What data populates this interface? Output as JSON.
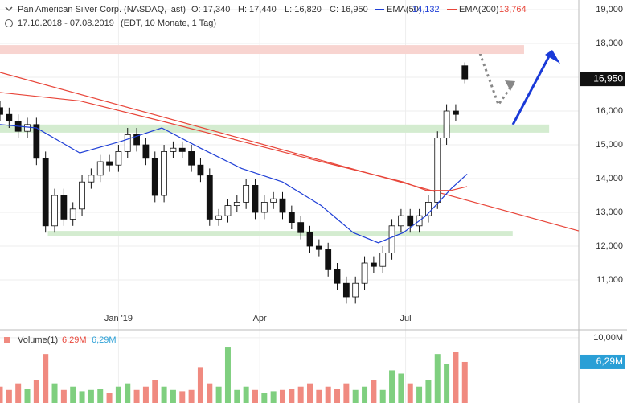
{
  "chart_data": {
    "type": "candlestick",
    "title": "Pan American Silver Corp. (NASDAQ, last)",
    "ohlc": [
      "O: 17,340",
      "H: 17,440",
      "L: 16,820",
      "C: 16,950"
    ],
    "subtitle": "17.10.2018 - 07.08.2019",
    "subtitle_info": "(EDT, 10 Monate, 1 Tag)",
    "x": [
      0,
      4,
      8,
      12,
      16,
      20,
      24,
      28,
      32,
      36,
      40,
      44,
      48,
      52,
      56,
      60,
      64,
      68,
      72,
      76,
      80,
      84,
      88,
      92,
      96,
      100,
      104,
      108,
      112,
      116,
      120,
      124,
      128,
      132,
      136,
      140,
      144,
      148,
      152,
      156,
      160,
      164,
      168,
      172,
      176,
      180,
      184,
      188,
      192,
      196,
      200,
      204
    ],
    "opens": [
      16100,
      15900,
      15700,
      15400,
      15600,
      14600,
      12600,
      13500,
      12800,
      13100,
      13900,
      14100,
      14500,
      14400,
      14800,
      15300,
      15000,
      14600,
      13500,
      14800,
      14900,
      14800,
      14400,
      14100,
      12800,
      12900,
      13200,
      13300,
      13800,
      13000,
      13300,
      13400,
      13000,
      12700,
      12400,
      12000,
      11900,
      11300,
      10900,
      10500,
      10900,
      11500,
      11400,
      11800,
      12600,
      12900,
      12600,
      12900,
      13300,
      15200,
      16000,
      17340
    ],
    "highs": [
      16300,
      16100,
      15900,
      15800,
      15800,
      14800,
      13700,
      13700,
      13300,
      14100,
      14300,
      14700,
      14700,
      15000,
      15500,
      15500,
      15200,
      14800,
      15000,
      15100,
      15100,
      15000,
      14600,
      14300,
      13100,
      13400,
      13500,
      14000,
      14000,
      13500,
      13600,
      13600,
      13200,
      12900,
      12600,
      12200,
      12100,
      11500,
      11100,
      11100,
      11700,
      11700,
      12000,
      12800,
      13100,
      13100,
      13100,
      13500,
      15400,
      16200,
      16200,
      17440
    ],
    "lows": [
      15700,
      15500,
      15200,
      15200,
      14400,
      12400,
      12400,
      12600,
      12600,
      12900,
      13700,
      13900,
      14200,
      14200,
      14600,
      14800,
      14400,
      13300,
      13300,
      14600,
      14600,
      14200,
      13900,
      12600,
      12600,
      12700,
      13000,
      13100,
      12800,
      12800,
      13100,
      12800,
      12500,
      12200,
      11800,
      11700,
      11100,
      10700,
      10300,
      10300,
      10700,
      11200,
      11200,
      11600,
      12400,
      12400,
      12400,
      12700,
      13100,
      15000,
      15700,
      16820
    ],
    "closes": [
      15900,
      15700,
      15400,
      15600,
      14600,
      12600,
      13500,
      12800,
      13100,
      13900,
      14100,
      14500,
      14400,
      14800,
      15300,
      15000,
      14600,
      13500,
      14800,
      14900,
      14800,
      14400,
      14100,
      12800,
      12900,
      13200,
      13300,
      13800,
      13000,
      13300,
      13400,
      13000,
      12700,
      12400,
      12000,
      11900,
      11300,
      10900,
      10500,
      10900,
      11500,
      11400,
      11800,
      12600,
      12900,
      12600,
      12900,
      13300,
      15200,
      16000,
      15900,
      16950
    ],
    "series": [
      {
        "name": "EMA(50)",
        "color": "#1f3fd6",
        "last_label": "14,132",
        "x": [
          0,
          16,
          35,
          53,
          71,
          88,
          106,
          124,
          141,
          155,
          166,
          177,
          187,
          198,
          205
        ],
        "values": [
          15600,
          15500,
          14760,
          15100,
          15500,
          14900,
          14300,
          13900,
          13200,
          12400,
          12100,
          12400,
          12900,
          13700,
          14132
        ]
      },
      {
        "name": "EMA(200)",
        "color": "#e8463a",
        "last_label": "13,764",
        "x": [
          0,
          35,
          71,
          106,
          141,
          159,
          177,
          187,
          198,
          205
        ],
        "values": [
          16550,
          16300,
          15700,
          15100,
          14500,
          14200,
          13900,
          13650,
          13650,
          13764
        ]
      }
    ],
    "trendline": {
      "color": "#e8463a",
      "x": [
        0,
        254
      ],
      "values": [
        17143,
        12452
      ]
    },
    "zones": [
      {
        "color": "#f8d4d0",
        "x": [
          0,
          230
        ],
        "values": [
          17690,
          17950
        ]
      },
      {
        "color": "#d4ecd0",
        "x": [
          0,
          241
        ],
        "values": [
          15360,
          15600
        ]
      },
      {
        "color": "#d4ecd0",
        "x": [
          21,
          225
        ],
        "values": [
          12290,
          12450
        ]
      }
    ],
    "last_price": {
      "value": 16950,
      "label": "16,950"
    },
    "xlim": [
      0,
      254
    ],
    "xticks": [
      {
        "value": 52,
        "label": "Jan '19"
      },
      {
        "value": 114,
        "label": "Apr"
      },
      {
        "value": 178,
        "label": "Jul"
      }
    ],
    "ylim": [
      9643,
      19286
    ],
    "yticks": [
      {
        "value": 11000,
        "label": "11,000"
      },
      {
        "value": 12000,
        "label": "12,000"
      },
      {
        "value": 13000,
        "label": "13,000"
      },
      {
        "value": 14000,
        "label": "14,000"
      },
      {
        "value": 15000,
        "label": "15,000"
      },
      {
        "value": 16000,
        "label": "16,000"
      },
      {
        "value": 17000,
        "label": "17,000"
      },
      {
        "value": 18000,
        "label": "18,000"
      },
      {
        "value": 19000,
        "label": "19,000"
      }
    ],
    "grid": true,
    "volume": {
      "name": "Volume(1)",
      "legend_labels": [
        "6,29M",
        "6,29M"
      ],
      "up_color": "#7fcf7f",
      "down_color": "#f08a80",
      "values": [
        2.5,
        2.0,
        3.0,
        2.2,
        3.5,
        7.5,
        3.0,
        2.0,
        2.5,
        1.8,
        2.0,
        2.2,
        1.5,
        2.5,
        3.0,
        2.0,
        2.5,
        3.5,
        2.5,
        2.0,
        1.8,
        2.0,
        5.5,
        3.0,
        2.5,
        8.5,
        2.0,
        2.5,
        2.0,
        1.5,
        1.8,
        2.0,
        2.2,
        2.5,
        3.0,
        2.0,
        2.5,
        2.2,
        3.0,
        2.0,
        2.5,
        3.5,
        2.0,
        5.0,
        4.5,
        3.0,
        2.5,
        3.5,
        7.5,
        6.0,
        7.8,
        6.29
      ],
      "ylim": [
        0,
        10.6
      ],
      "yticks": [
        {
          "value": 10,
          "label": "10,00M"
        }
      ],
      "last": {
        "value": 6.29,
        "label": "6,29M"
      }
    }
  }
}
